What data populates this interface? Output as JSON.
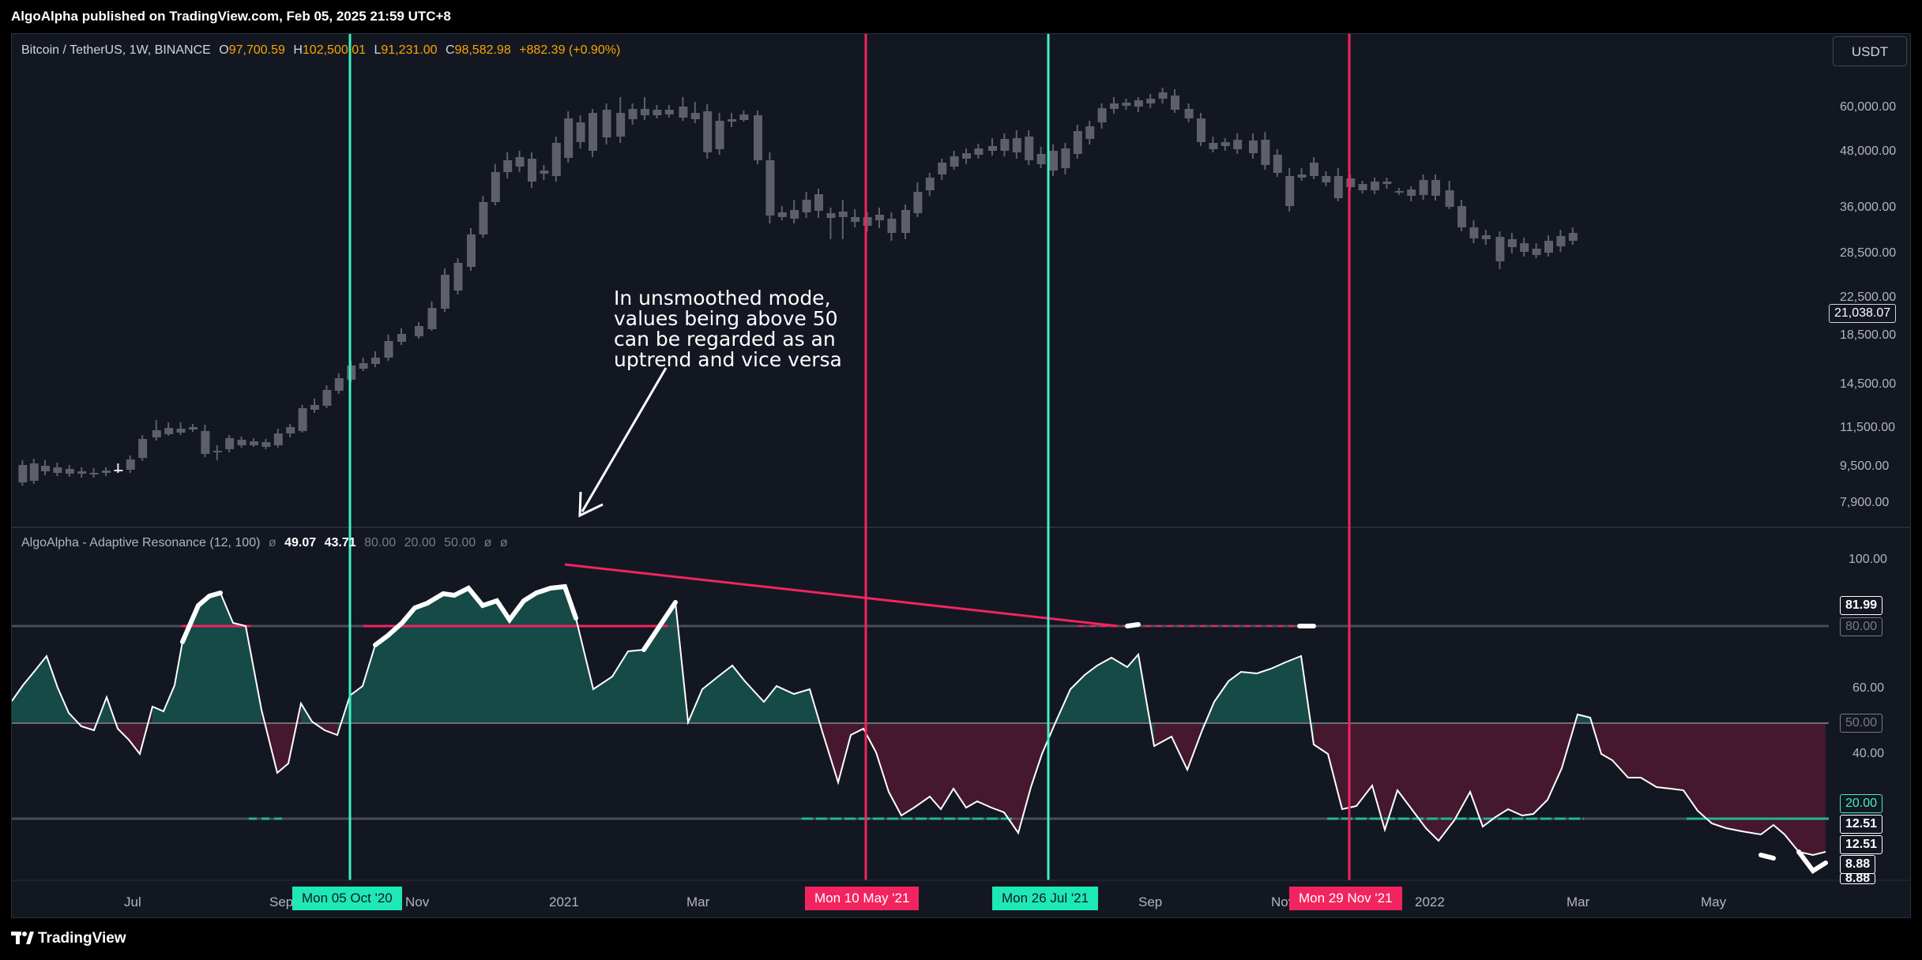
{
  "header": {
    "published_by": "AlgoAlpha published on TradingView.com, Feb 05, 2025 21:59 UTC+8"
  },
  "symbol_legend": {
    "symbol": "Bitcoin / TetherUS, 1W, BINANCE",
    "o_label": "O",
    "o_value": "97,700.59",
    "h_label": "H",
    "h_value": "102,500.01",
    "l_label": "L",
    "l_value": "91,231.00",
    "c_label": "C",
    "c_value": "98,582.98",
    "change": "+882.39 (+0.90%)"
  },
  "currency_button": "USDT",
  "price_axis": {
    "labels": [
      "60,000.00",
      "48,000.00",
      "36,000.00",
      "28,500.00",
      "22,500.00",
      "18,500.00",
      "14,500.00",
      "11,500.00",
      "9,500.00",
      "7,900.00"
    ],
    "last_price": "21,038.07"
  },
  "annotation": {
    "lines": [
      "In unsmoothed mode,",
      "values being above 50",
      "can be regarded as an",
      "uptrend and vice versa"
    ]
  },
  "indicator_legend": {
    "name": "AlgoAlpha - Adaptive Resonance (12, 100)",
    "v1": "ø",
    "v2": "49.07",
    "v3": "43.71",
    "v4": "80.00",
    "v5": "20.00",
    "v6": "50.00",
    "v7": "ø",
    "v8": "ø"
  },
  "indicator_axis": {
    "labels": [
      "100.00",
      "60.00",
      "40.00"
    ],
    "tag_8199": "81.99",
    "tag_80": "80.00",
    "tag_50": "50.00",
    "tag_20": "20.00",
    "tag_1251a": "12.51",
    "tag_1251b": "12.51",
    "tag_888a": "8.88",
    "tag_888b": "8.88"
  },
  "time_axis": {
    "months": [
      "Jul",
      "Sep",
      "Nov",
      "2021",
      "Mar",
      "Sep",
      "Nov",
      "2022",
      "Mar",
      "May"
    ],
    "date_tags": [
      "Mon 05 Oct '20",
      "Mon 10 May '21",
      "Mon 26 Jul '21",
      "Mon 29 Nov '21"
    ]
  },
  "footer": {
    "brand": "TradingView"
  },
  "colors": {
    "background": "#131722",
    "bull_candle": "#e8e8ef",
    "bear_candle": "#5d606b",
    "teal_line": "#3ef2c5",
    "pink_line": "#f2245f",
    "oscillator_line": "#ffffff",
    "ohlc_orange": "#f7a600"
  }
}
